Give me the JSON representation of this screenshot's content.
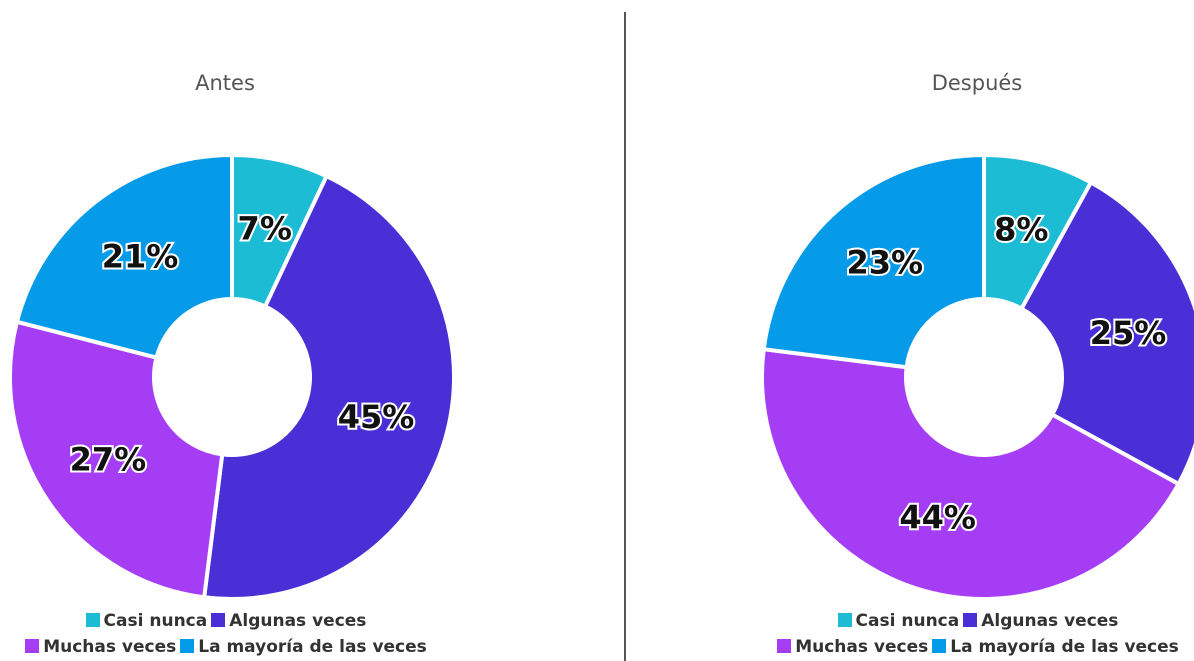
{
  "chart_data": [
    {
      "type": "pie",
      "title": "Antes",
      "categories": [
        "Casi nunca",
        "Algunas veces",
        "Muchas veces",
        "La mayoría de las veces"
      ],
      "values": [
        7,
        45,
        27,
        21
      ],
      "value_labels": [
        "7%",
        "45%",
        "27%",
        "21%"
      ],
      "colors": [
        "#1bbcd4",
        "#4b2fd6",
        "#a53df5",
        "#069be8"
      ]
    },
    {
      "type": "pie",
      "title": "Después",
      "categories": [
        "Casi nunca",
        "Algunas veces",
        "Muchas veces",
        "La mayoría de las veces"
      ],
      "values": [
        8,
        25,
        44,
        23
      ],
      "value_labels": [
        "8%",
        "25%",
        "44%",
        "23%"
      ],
      "colors": [
        "#1bbcd4",
        "#4b2fd6",
        "#a53df5",
        "#069be8"
      ]
    }
  ]
}
